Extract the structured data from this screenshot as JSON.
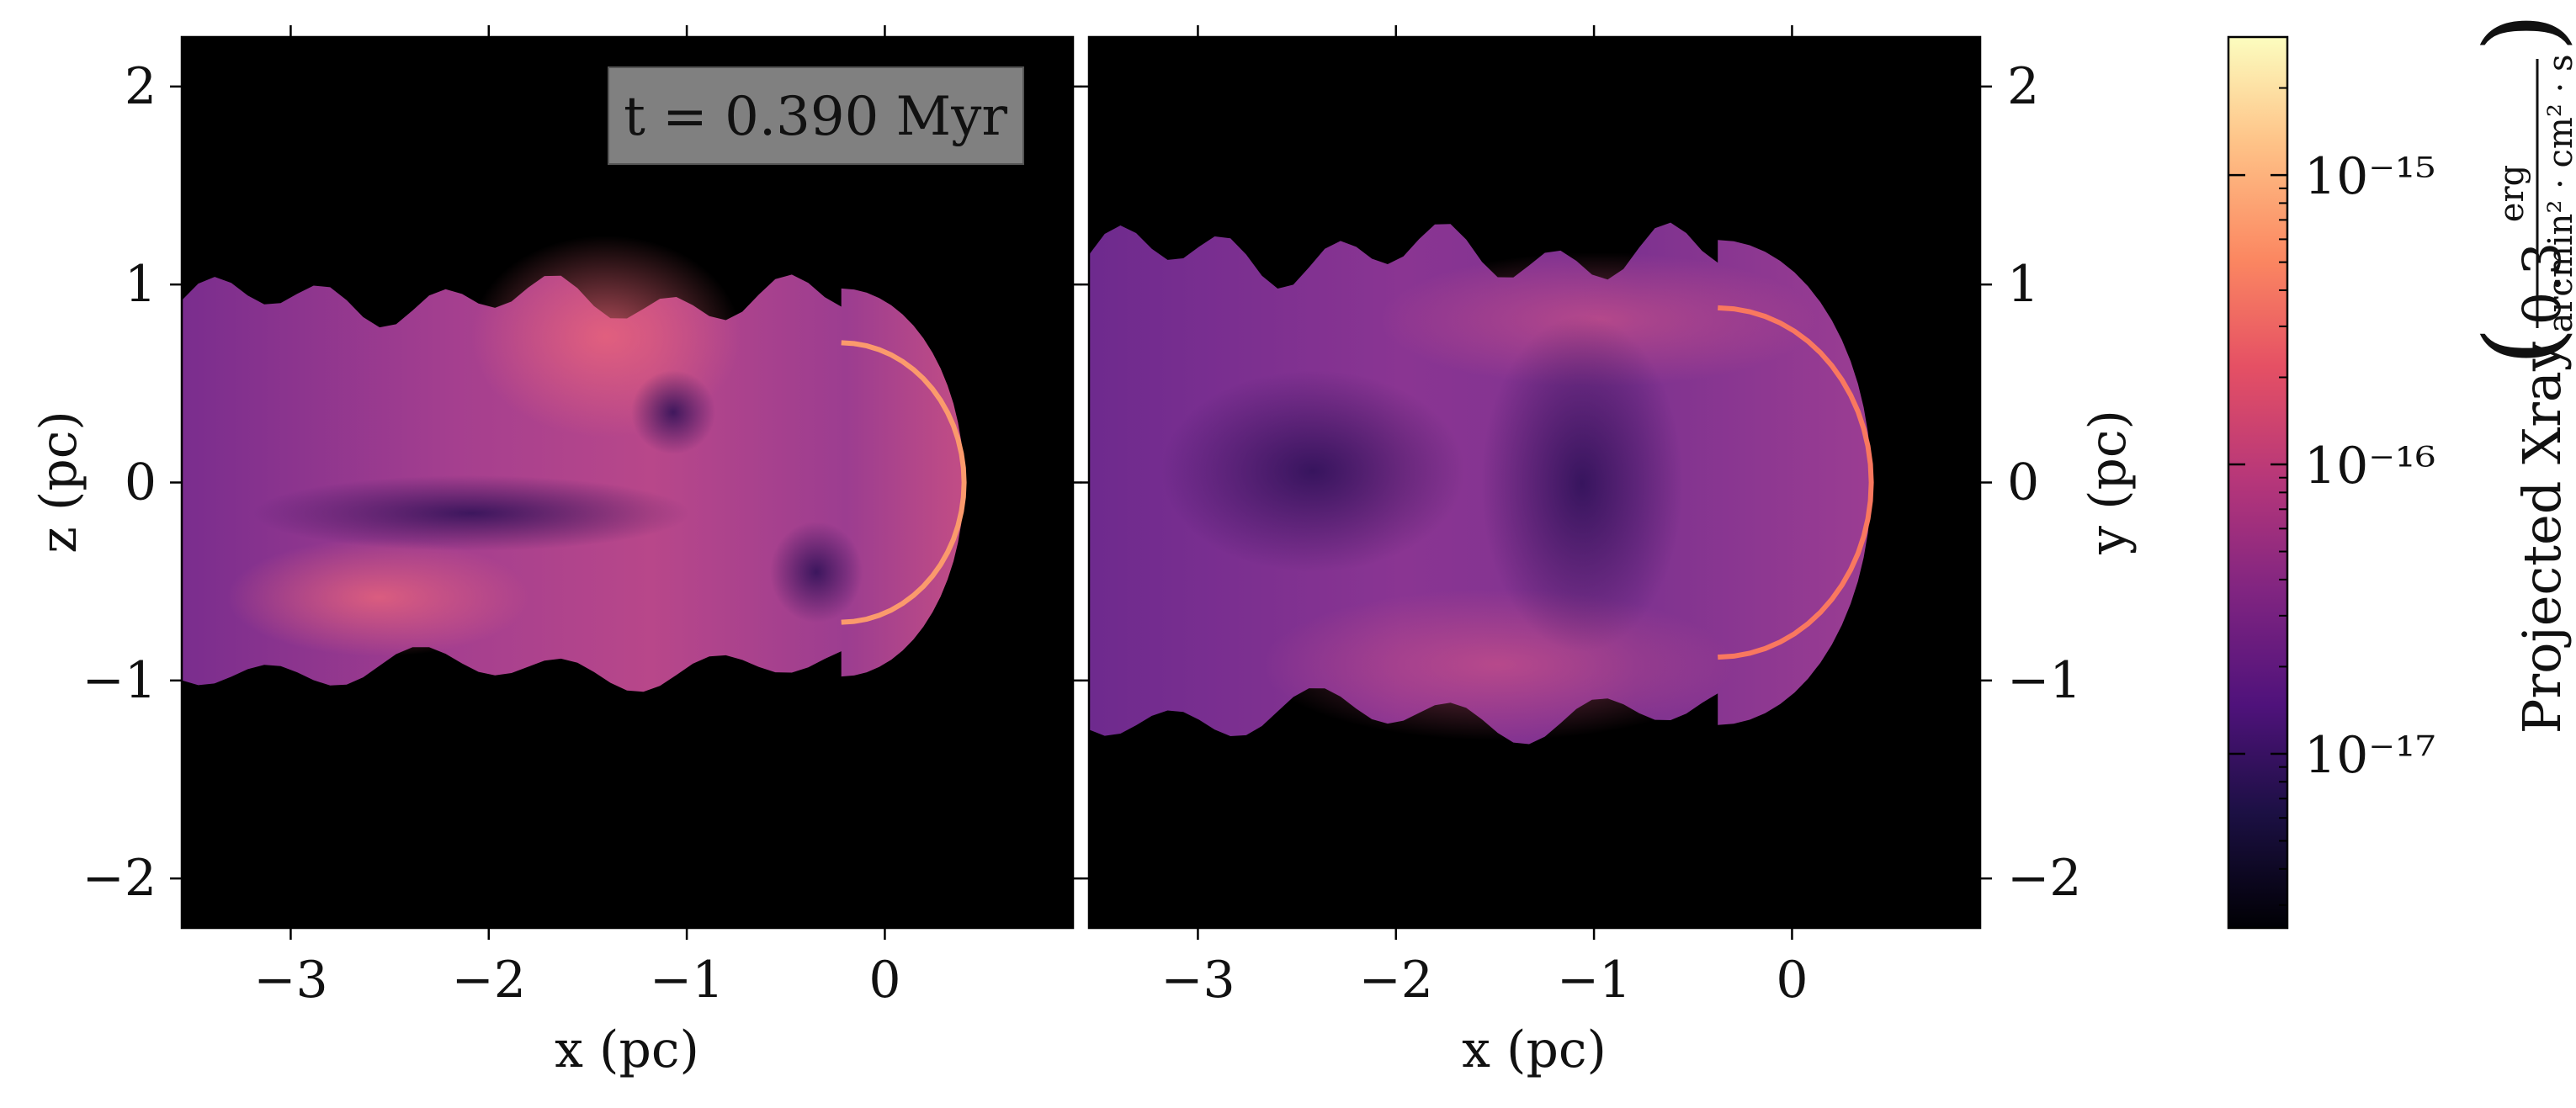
{
  "chart_data": {
    "type": "heatmap",
    "colormap": "magma",
    "panels": [
      {
        "id": "left",
        "xlabel": "x  (pc)",
        "ylabel": "z  (pc)",
        "xlim": [
          -3.55,
          0.95
        ],
        "ylim": [
          -2.25,
          2.25
        ],
        "xticks": [
          -3,
          -2,
          -1,
          0
        ],
        "xtick_labels": [
          "−3",
          "−2",
          "−1",
          "0"
        ],
        "yticks": [
          -2,
          -1,
          0,
          1,
          2
        ],
        "ytick_labels": [
          "−2",
          "−1",
          "0",
          "1",
          "2"
        ],
        "ylabel_side": "left",
        "annotation": "t =  0.390 Myr",
        "shape": "bullet",
        "head_x": 0.4,
        "half_width": 1.0
      },
      {
        "id": "right",
        "xlabel": "x  (pc)",
        "ylabel": "y  (pc)",
        "xlim": [
          -3.55,
          0.95
        ],
        "ylim": [
          -2.25,
          2.25
        ],
        "xticks": [
          -3,
          -2,
          -1,
          0
        ],
        "xtick_labels": [
          "−3",
          "−2",
          "−1",
          "0"
        ],
        "yticks": [
          -2,
          -1,
          0,
          1,
          2
        ],
        "ytick_labels": [
          "−2",
          "−1",
          "0",
          "1",
          "2"
        ],
        "ylabel_side": "right",
        "shape": "bullet",
        "head_x": 0.4,
        "half_width": 1.25
      }
    ],
    "colorbar": {
      "label": "Projected Xray 0.3",
      "unit_numerator": "erg",
      "unit_denominator": "arcmin² · cm² · s",
      "scale": "log",
      "range": [
        2.5e-18,
        3e-15
      ],
      "ticks": [
        1e-17,
        1e-16,
        1e-15
      ],
      "tick_labels": [
        "10⁻¹⁷",
        "10⁻¹⁶",
        "10⁻¹⁵"
      ]
    }
  }
}
